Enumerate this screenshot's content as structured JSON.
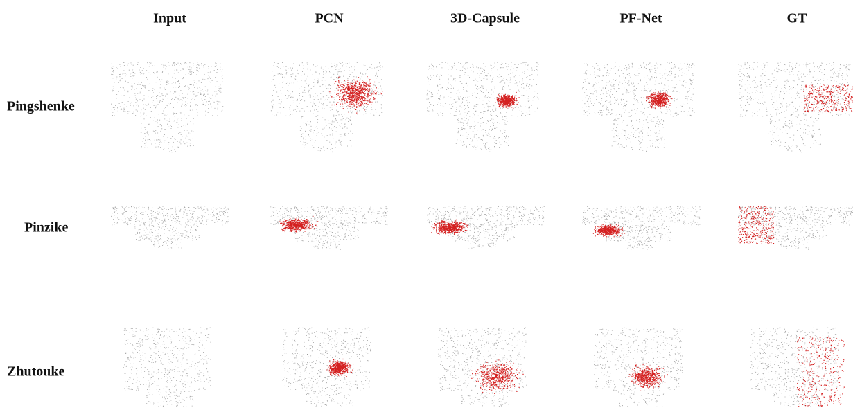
{
  "columns": [
    "Input",
    "PCN",
    "3D-Capsule",
    "PF-Net",
    "GT"
  ],
  "rows": [
    "Pingshenke",
    "Pinzike",
    "Zhutouke"
  ]
}
